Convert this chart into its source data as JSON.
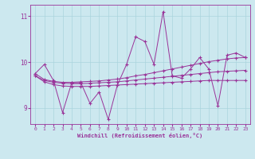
{
  "background_color": "#cce8ef",
  "line_color": "#993399",
  "grid_color": "#aad4dd",
  "xlim": [
    -0.5,
    23.5
  ],
  "ylim": [
    8.65,
    11.25
  ],
  "yticks": [
    9,
    10,
    11
  ],
  "xticks": [
    0,
    1,
    2,
    3,
    4,
    5,
    6,
    7,
    8,
    9,
    10,
    11,
    12,
    13,
    14,
    15,
    16,
    17,
    18,
    19,
    20,
    21,
    22,
    23
  ],
  "xlabel": "Windchill (Refroidissement éolien,°C)",
  "line_jagged": [
    9.75,
    9.95,
    9.6,
    8.9,
    9.55,
    9.55,
    9.1,
    9.35,
    8.75,
    9.5,
    9.95,
    10.55,
    10.45,
    9.95,
    11.1,
    9.7,
    9.65,
    9.85,
    10.1,
    9.85,
    9.05,
    10.15,
    10.2,
    10.1
  ],
  "line_upper": [
    9.75,
    9.62,
    9.58,
    9.56,
    9.56,
    9.57,
    9.58,
    9.59,
    9.61,
    9.63,
    9.66,
    9.7,
    9.73,
    9.77,
    9.81,
    9.85,
    9.89,
    9.93,
    9.97,
    10.01,
    10.04,
    10.07,
    10.09,
    10.1
  ],
  "line_mid": [
    9.7,
    9.6,
    9.56,
    9.54,
    9.53,
    9.53,
    9.54,
    9.55,
    9.56,
    9.57,
    9.59,
    9.61,
    9.63,
    9.65,
    9.67,
    9.69,
    9.71,
    9.73,
    9.75,
    9.77,
    9.79,
    9.8,
    9.81,
    9.82
  ],
  "line_lower": [
    9.7,
    9.57,
    9.51,
    9.48,
    9.47,
    9.47,
    9.47,
    9.48,
    9.49,
    9.5,
    9.51,
    9.52,
    9.53,
    9.54,
    9.55,
    9.56,
    9.57,
    9.58,
    9.59,
    9.6,
    9.6,
    9.6,
    9.6,
    9.6
  ]
}
